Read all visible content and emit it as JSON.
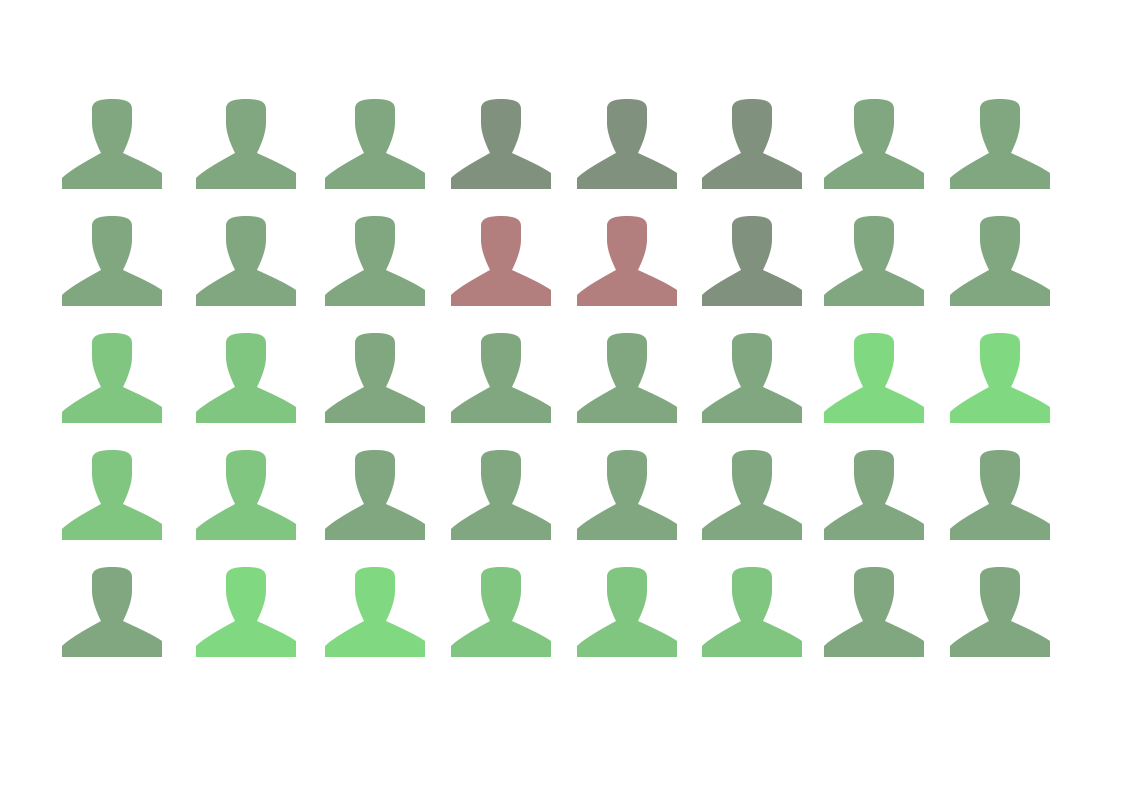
{
  "palette": {
    "muted_green": "#80a780",
    "grey_green": "#80917e",
    "mid_green": "#80c680",
    "bright_green": "#80d980",
    "rose": "#b27f7e"
  },
  "figures": {
    "icon": "person-silhouette-icon",
    "rows": [
      [
        "muted_green",
        "muted_green",
        "muted_green",
        "grey_green",
        "grey_green",
        "grey_green",
        "muted_green",
        "muted_green"
      ],
      [
        "muted_green",
        "muted_green",
        "muted_green",
        "rose",
        "rose",
        "grey_green",
        "muted_green",
        "muted_green"
      ],
      [
        "mid_green",
        "mid_green",
        "muted_green",
        "muted_green",
        "muted_green",
        "muted_green",
        "bright_green",
        "bright_green"
      ],
      [
        "mid_green",
        "mid_green",
        "muted_green",
        "muted_green",
        "muted_green",
        "muted_green",
        "muted_green",
        "muted_green"
      ],
      [
        "muted_green",
        "bright_green",
        "bright_green",
        "mid_green",
        "mid_green",
        "mid_green",
        "muted_green",
        "muted_green"
      ]
    ]
  }
}
